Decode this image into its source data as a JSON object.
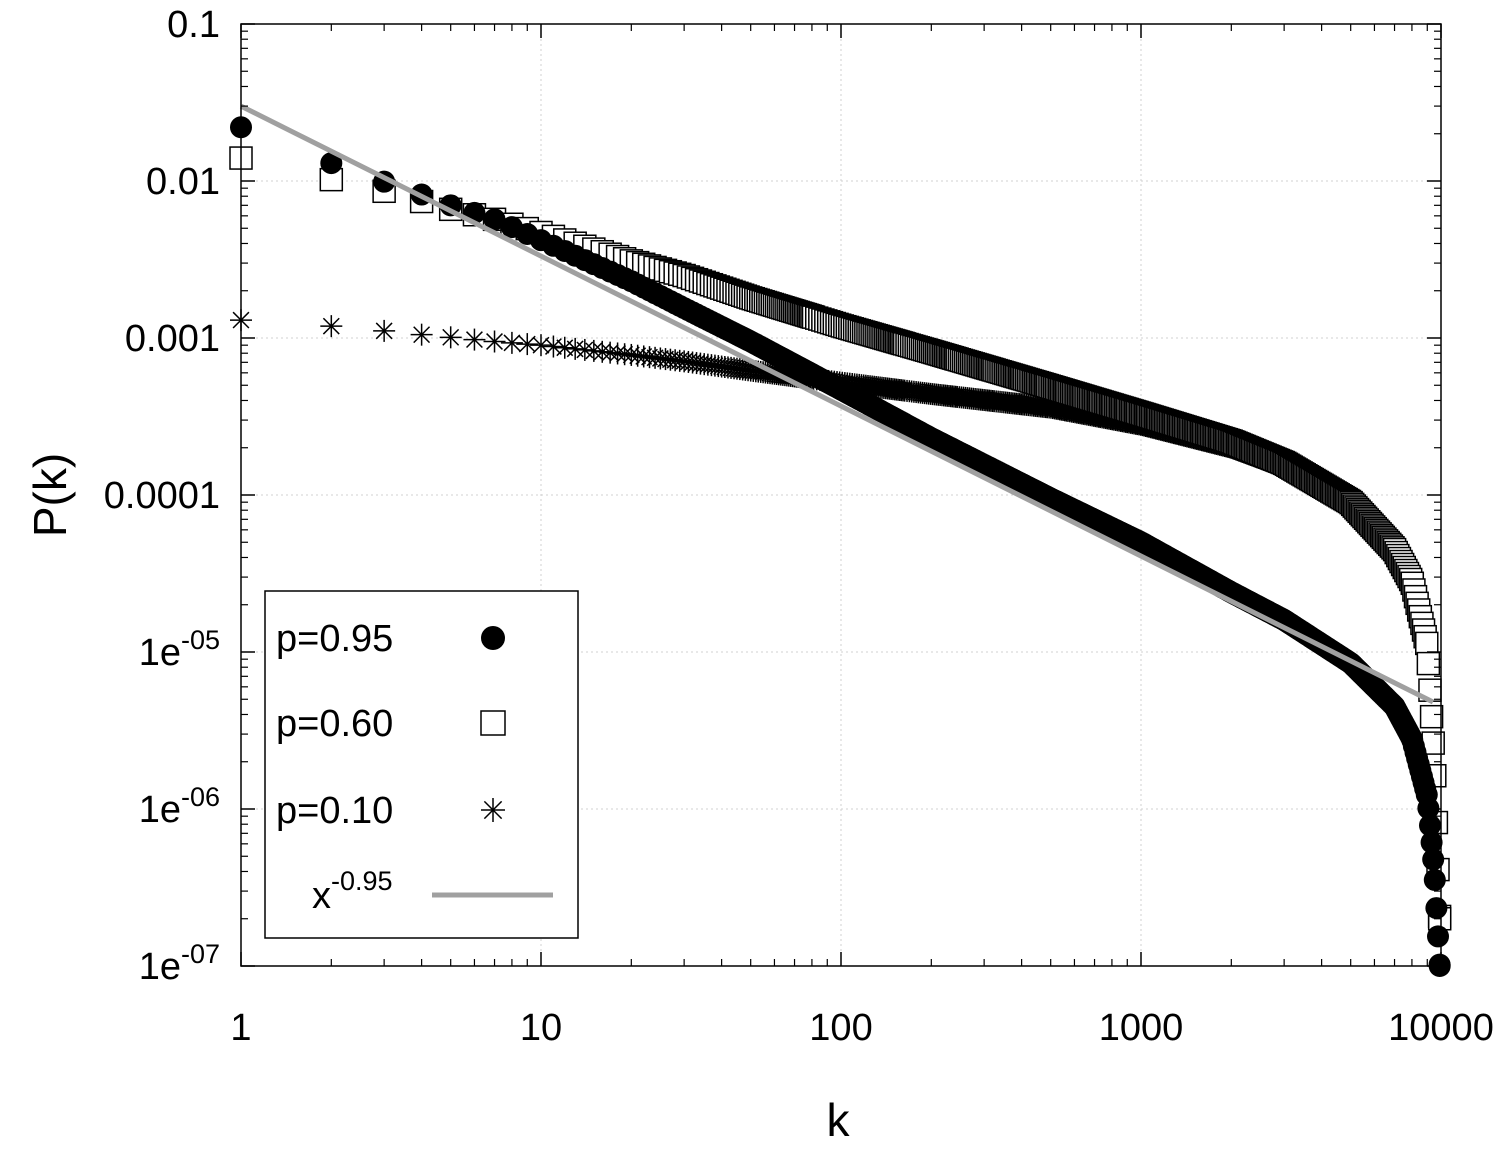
{
  "chart_data": {
    "type": "scatter",
    "xlabel": "k",
    "ylabel": "P(k)",
    "xscale": "log",
    "yscale": "log",
    "xlim": [
      1,
      10000
    ],
    "ylim": [
      1e-07,
      0.1
    ],
    "grid": true,
    "legend_position": "bottom-left",
    "x_ticks": [
      {
        "value": 1,
        "label": "1"
      },
      {
        "value": 10,
        "label": "10"
      },
      {
        "value": 100,
        "label": "100"
      },
      {
        "value": 1000,
        "label": "1000"
      },
      {
        "value": 10000,
        "label": "10000"
      }
    ],
    "y_ticks": [
      {
        "value": 0.1,
        "base": "0.1",
        "exp": ""
      },
      {
        "value": 0.01,
        "base": "0.01",
        "exp": ""
      },
      {
        "value": 0.001,
        "base": "0.001",
        "exp": ""
      },
      {
        "value": 0.0001,
        "base": "0.0001",
        "exp": ""
      },
      {
        "value": 1e-05,
        "base": "1e",
        "exp": "-05"
      },
      {
        "value": 1e-06,
        "base": "1e",
        "exp": "-06"
      },
      {
        "value": 1e-07,
        "base": "1e",
        "exp": "-07"
      }
    ],
    "series": [
      {
        "name": "p=0.95",
        "marker": "filled-circle",
        "color": "#000000",
        "points": [
          [
            1,
            0.022
          ],
          [
            2,
            0.013
          ],
          [
            3,
            0.0099
          ],
          [
            4,
            0.0082
          ],
          [
            5,
            0.007
          ],
          [
            7,
            0.0057
          ],
          [
            10,
            0.0042
          ],
          [
            20,
            0.0023
          ],
          [
            30,
            0.00155
          ],
          [
            50,
            0.00095
          ],
          [
            100,
            0.00047
          ],
          [
            200,
            0.00023
          ],
          [
            500,
            9.5e-05
          ],
          [
            1000,
            5e-05
          ],
          [
            2000,
            2.4e-05
          ],
          [
            3000,
            1.6e-05
          ],
          [
            5000,
            8.5e-06
          ],
          [
            7000,
            4.5e-06
          ],
          [
            8000,
            2.8e-06
          ],
          [
            9000,
            1.2e-06
          ],
          [
            9500,
            4e-07
          ],
          [
            9900,
            1e-07
          ]
        ]
      },
      {
        "name": "p=0.60",
        "marker": "open-square",
        "color": "#000000",
        "points": [
          [
            1,
            0.014
          ],
          [
            2,
            0.0102
          ],
          [
            3,
            0.0086
          ],
          [
            4,
            0.0074
          ],
          [
            5,
            0.0066
          ],
          [
            7,
            0.0057
          ],
          [
            10,
            0.0047
          ],
          [
            20,
            0.0031
          ],
          [
            30,
            0.0025
          ],
          [
            50,
            0.0018
          ],
          [
            100,
            0.0012
          ],
          [
            200,
            0.00082
          ],
          [
            500,
            0.00049
          ],
          [
            1000,
            0.00033
          ],
          [
            2000,
            0.00022
          ],
          [
            3000,
            0.00016
          ],
          [
            5000,
            9e-05
          ],
          [
            7000,
            4.5e-05
          ],
          [
            8000,
            2.8e-05
          ],
          [
            9000,
            1.1e-05
          ],
          [
            9500,
            2e-06
          ],
          [
            9900,
            2e-07
          ]
        ]
      },
      {
        "name": "p=0.10",
        "marker": "asterisk",
        "color": "#000000",
        "points": [
          [
            1,
            0.0013
          ],
          [
            2,
            0.00119
          ],
          [
            3,
            0.00111
          ],
          [
            4,
            0.00105
          ],
          [
            5,
            0.00101
          ],
          [
            7,
            0.00095
          ],
          [
            10,
            0.0009
          ],
          [
            20,
            0.00078
          ],
          [
            30,
            0.00071
          ],
          [
            50,
            0.00062
          ],
          [
            100,
            0.00052
          ],
          [
            200,
            0.00044
          ],
          [
            500,
            0.00036
          ],
          [
            1000,
            0.00028
          ],
          [
            2000,
            0.0002
          ],
          [
            3000,
            0.00015
          ],
          [
            5000,
            9e-05
          ],
          [
            7000,
            4.5e-05
          ],
          [
            8000,
            2.8e-05
          ],
          [
            9000,
            1.1e-05
          ],
          [
            9500,
            2e-06
          ],
          [
            9900,
            2e-07
          ]
        ]
      },
      {
        "name_base": "x",
        "name_exp": "-0.95",
        "type": "line",
        "color": "#a0a0a0",
        "points": [
          [
            1,
            0.03
          ],
          [
            10000,
            4.8e-06
          ]
        ]
      }
    ]
  }
}
